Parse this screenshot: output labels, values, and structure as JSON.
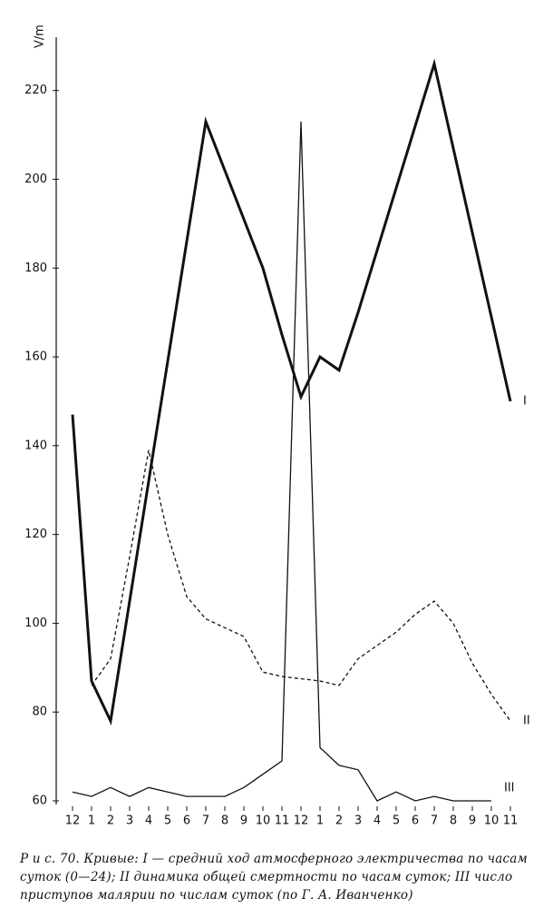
{
  "chart_data": {
    "type": "line",
    "ylabel": "V/m",
    "categories": [
      "12",
      "1",
      "2",
      "3",
      "4",
      "5",
      "6",
      "7",
      "8",
      "9",
      "10",
      "11",
      "12",
      "1",
      "2",
      "3",
      "4",
      "5",
      "6",
      "7",
      "8",
      "9",
      "10",
      "11"
    ],
    "ylim": [
      60,
      232
    ],
    "yticks": [
      60,
      80,
      100,
      120,
      140,
      160,
      180,
      200,
      220
    ],
    "series": [
      {
        "name": "I",
        "color": "#111111",
        "width": 3,
        "dash": "none",
        "values": [
          147,
          87,
          78,
          105,
          132,
          159,
          186,
          213,
          202,
          191,
          180,
          165,
          151,
          160,
          157,
          170,
          184,
          198,
          212,
          226,
          207,
          188,
          169,
          150
        ]
      },
      {
        "name": "II",
        "color": "#111111",
        "width": 1.3,
        "dash": "4,3",
        "values": [
          null,
          86,
          92,
          115,
          139,
          120,
          106,
          101,
          99,
          97,
          89,
          88,
          87.5,
          87,
          86,
          92,
          95,
          98,
          102,
          105,
          100,
          91,
          84,
          78
        ]
      },
      {
        "name": "III",
        "color": "#111111",
        "width": 1.3,
        "dash": "none",
        "values": [
          62,
          61,
          63,
          61,
          63,
          62,
          61,
          61,
          61,
          63,
          66,
          69,
          213,
          72,
          68,
          67,
          60,
          62,
          60,
          61,
          60,
          60,
          60,
          null
        ]
      }
    ],
    "caption": "Р и с. 70. Кривые: I — средний ход атмосферного электричества по часам суток (0—24); II динамика общей смертности по часам суток; III число приступов малярии по числам суток (по Г. А. Иванченко)"
  }
}
